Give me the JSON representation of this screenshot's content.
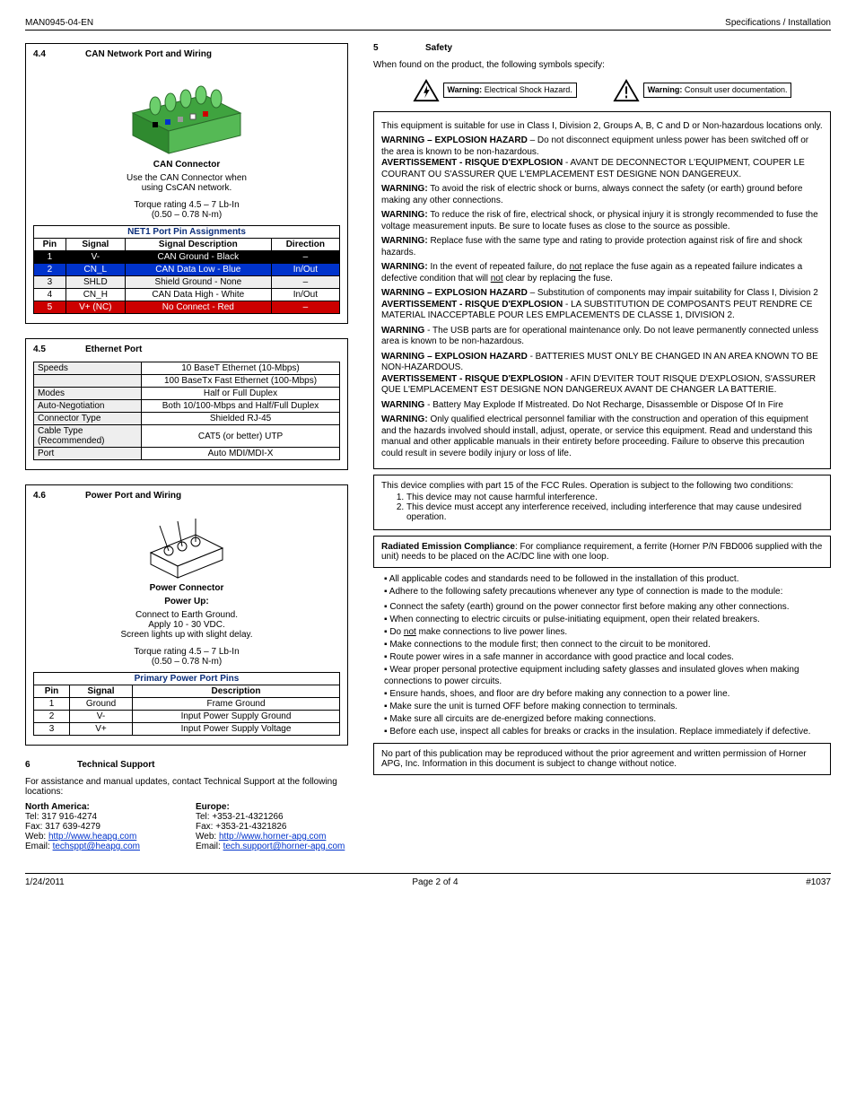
{
  "header": {
    "left": "MAN0945-04-EN",
    "right": "Specifications / Installation"
  },
  "footer": {
    "left": "1/24/2011",
    "center": "Page 2 of 4",
    "right": "#1037"
  },
  "can": {
    "num": "4.4",
    "title": "CAN Network Port and Wiring",
    "connector_caption": "CAN Connector",
    "use_line1": "Use the CAN Connector when",
    "use_line2": "using CsCAN network.",
    "torque1": "Torque rating 4.5 – 7 Lb-In",
    "torque2": "(0.50 – 0.78 N-m)",
    "table_title": "NET1 Port Pin Assignments",
    "headers": [
      "Pin",
      "Signal",
      "Signal Description",
      "Direction"
    ],
    "rows": [
      {
        "cells": [
          "1",
          "V-",
          "CAN Ground - Black",
          "–"
        ],
        "cls": "row-black"
      },
      {
        "cells": [
          "2",
          "CN_L",
          "CAN Data Low - Blue",
          "In/Out"
        ],
        "cls": "row-blue"
      },
      {
        "cells": [
          "3",
          "SHLD",
          "Shield Ground - None",
          "–"
        ],
        "cls": "odd"
      },
      {
        "cells": [
          "4",
          "CN_H",
          "CAN Data High - White",
          "In/Out"
        ],
        "cls": "even"
      },
      {
        "cells": [
          "5",
          "V+ (NC)",
          "No Connect - Red",
          "–"
        ],
        "cls": "row-red"
      }
    ]
  },
  "eth": {
    "num": "4.5",
    "title": "Ethernet Port",
    "rows": [
      [
        "Speeds",
        "10 BaseT Ethernet (10-Mbps)"
      ],
      [
        "",
        "100 BaseTx Fast Ethernet (100-Mbps)"
      ],
      [
        "Modes",
        "Half or Full Duplex"
      ],
      [
        "Auto-Negotiation",
        "Both 10/100-Mbps and Half/Full Duplex"
      ],
      [
        "Connector Type",
        "Shielded RJ-45"
      ],
      [
        "Cable Type (Recommended)",
        "CAT5 (or better) UTP"
      ],
      [
        "Port",
        "Auto MDI/MDI-X"
      ]
    ]
  },
  "pwr": {
    "num": "4.6",
    "title": "Power Port and Wiring",
    "connector_caption": "Power Connector",
    "power_up": "Power Up:",
    "pu1": "Connect to Earth Ground.",
    "pu2": "Apply 10 - 30 VDC.",
    "pu3": "Screen lights up with slight delay.",
    "torque1": "Torque rating 4.5 – 7 Lb-In",
    "torque2": "(0.50 – 0.78 N-m)",
    "table_title": "Primary Power Port Pins",
    "headers": [
      "Pin",
      "Signal",
      "Description"
    ],
    "rows": [
      [
        "1",
        "Ground",
        "Frame Ground"
      ],
      [
        "2",
        "V-",
        "Input Power Supply Ground"
      ],
      [
        "3",
        "V+",
        "Input Power Supply Voltage"
      ]
    ]
  },
  "tech": {
    "num": "6",
    "title": "Technical Support",
    "intro": "For assistance and manual updates, contact Technical Support at the following locations:",
    "na_title": "North America:",
    "na_tel": "Tel:  317 916-4274",
    "na_fax": "Fax: 317 639-4279",
    "na_web_label": "Web:  ",
    "na_web_url": "http://www.heapg.com",
    "na_email_label": "Email: ",
    "na_email": "techsppt@heapg.com",
    "eu_title": "Europe:",
    "eu_tel": "Tel:  +353-21-4321266",
    "eu_fax": "Fax: +353-21-4321826",
    "eu_web_label": "Web:  ",
    "eu_web_url": "http://www.horner-apg.com",
    "eu_email_label": "Email: ",
    "eu_email": "tech.support@horner-apg.com"
  },
  "safety": {
    "num": "5",
    "title": "Safety",
    "intro": "When found on the product, the following symbols specify:",
    "sym1_label_bold": "Warning:",
    "sym1_label_rest": "  Electrical Shock Hazard.",
    "sym2_label_bold": "Warning:",
    "sym2_label_rest": "  Consult user documentation.",
    "box1_p1": "This equipment is suitable for use in Class I, Division 2, Groups A, B, C and D or Non-hazardous locations only.",
    "box1_p2_bold": "WARNING – EXPLOSION HAZARD",
    "box1_p2_rest": " – Do not disconnect equipment unless power has been switched off or the area is known to be non-hazardous.",
    "box1_p3_bold": "AVERTISSEMENT - RISQUE D'EXPLOSION",
    "box1_p3_rest": " - AVANT DE DECONNECTOR L'EQUIPMENT, COUPER LE COURANT OU S'ASSURER QUE L'EMPLACEMENT EST DESIGNE NON DANGEREUX.",
    "box1_p4_bold": "WARNING:",
    "box1_p4_rest": "  To avoid the risk of electric shock or burns, always connect the safety (or earth) ground before making any other connections.",
    "box1_p5_bold": "WARNING:",
    "box1_p5_rest": "  To reduce the risk of fire, electrical shock, or physical injury it is strongly recommended to fuse the voltage measurement inputs.  Be sure to locate fuses as close to the source as possible.",
    "box1_p6_bold": "WARNING:",
    "box1_p6_rest": "  Replace fuse with the same type and rating to provide protection against risk of fire and shock hazards.",
    "box1_p7_bold": "WARNING:",
    "box1_p7_rest_a": "  In the event of repeated failure, do ",
    "box1_p7_not": "not",
    "box1_p7_rest_b": " replace the fuse again as a repeated failure indicates a defective condition that will ",
    "box1_p7_not2": "not",
    "box1_p7_rest_c": " clear by replacing the fuse.",
    "box1_p8_bold": "WARNING – EXPLOSION HAZARD",
    "box1_p8_rest": " – Substitution of components may impair suitability for Class I, Division 2",
    "box1_p9_bold": "AVERTISSEMENT - RISQUE D'EXPLOSION",
    "box1_p9_rest": " - LA SUBSTITUTION DE COMPOSANTS PEUT RENDRE CE MATERIAL INACCEPTABLE POUR LES EMPLACEMENTS DE CLASSE 1, DIVISION 2.",
    "box1_p10_bold": "WARNING",
    "box1_p10_rest": " - The USB parts are for operational maintenance only. Do not leave permanently connected unless area is known to be non-hazardous.",
    "box1_p11_bold": "WARNING – EXPLOSION HAZARD",
    "box1_p11_rest": " - BATTERIES MUST ONLY BE CHANGED IN AN AREA KNOWN TO BE NON-HAZARDOUS.",
    "box1_p12_bold": "AVERTISSEMENT - RISQUE D'EXPLOSION",
    "box1_p12_rest": " - AFIN D'EVITER TOUT RISQUE D'EXPLOSION, S'ASSURER QUE L'EMPLACEMENT EST DESIGNE NON DANGEREUX AVANT DE CHANGER LA BATTERIE.",
    "box1_p13_bold": "WARNING",
    "box1_p13_rest": " - Battery May Explode If Mistreated. Do Not Recharge, Disassemble or Dispose Of In Fire",
    "box1_p14_bold": "WARNING:",
    "box1_p14_rest": "  Only qualified electrical personnel familiar with the construction and operation of this equipment and the hazards involved should install, adjust, operate, or service this equipment.  Read and understand this manual and other applicable manuals in their entirety before proceeding. Failure to observe this precaution could result in severe bodily injury or loss of life.",
    "fcc_p": "This device complies with part 15 of the FCC Rules. Operation is subject to the following two conditions:",
    "fcc_1": "This device may not cause harmful interference.",
    "fcc_2": "This device must accept any interference received, including interference that may cause undesired operation.",
    "rec_bold": "Radiated Emission Compliance",
    "rec_rest": ": For compliance requirement, a ferrite (Horner P/N FBD006 supplied with the unit) needs to be placed on the AC/DC line with one loop.",
    "bul_top1": "All applicable codes and standards need to be followed in the installation of this product.",
    "bul_top2": "Adhere to the following safety precautions whenever any type of connection is made to the module:",
    "b1": "Connect the safety (earth) ground on the power connector first before making any other connections.",
    "b2": "When connecting to electric circuits or pulse-initiating equipment, open their related breakers.",
    "b3a": "Do ",
    "b3not": "not",
    "b3b": " make connections to live power lines.",
    "b4": "Make connections to the module first; then connect to the circuit to be monitored.",
    "b5": "Route power wires in a safe manner in accordance with good practice and local codes.",
    "b6": "Wear proper personal protective equipment including safety glasses and insulated gloves when making connections to power circuits.",
    "b7": "Ensure hands, shoes, and floor are dry before making any connection to a power line.",
    "b8": "Make sure the unit is turned OFF before making connection to terminals.",
    "b9": "Make sure all circuits are de-energized before making connections.",
    "b10": "Before each use, inspect all cables for breaks or cracks in the insulation. Replace immediately if defective.",
    "copyright": "No part of this publication may be reproduced without the prior agreement and written permission of Horner APG, Inc. Information in this document is subject to change without notice."
  }
}
